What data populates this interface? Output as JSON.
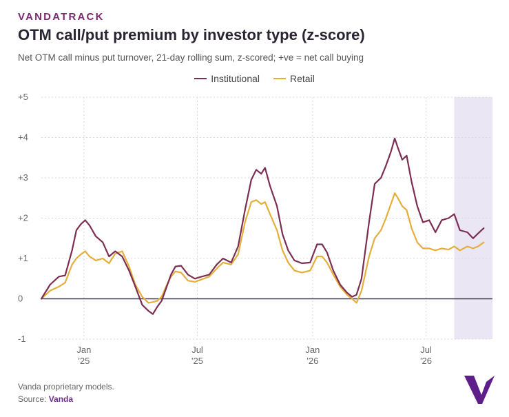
{
  "header": {
    "brand": "VANDATRACK",
    "title": "OTM call/put premium by investor type (z-score)",
    "subtitle": "Net OTM call minus put turnover, 21-day rolling sum, z-scored; +ve = net call buying"
  },
  "footer": {
    "note": "Vanda proprietary models.",
    "source_prefix": "Source: ",
    "source_name": "Vanda"
  },
  "logo": {
    "icon": "vanda-v-logo-icon",
    "color": "#5e1f8a"
  },
  "chart_data": {
    "type": "line",
    "title": "OTM call/put premium by investor type (z-score)",
    "ylim": [
      -1,
      5
    ],
    "yticks": [
      -1,
      0,
      1,
      2,
      3,
      4,
      5
    ],
    "ytick_labels": [
      "-1",
      "0",
      "+1",
      "+2",
      "+3",
      "+4",
      "+5"
    ],
    "xlim": [
      "2024-10-25",
      "2026-10-15"
    ],
    "xticks": [
      {
        "date": "2025-01-01",
        "label": "Jan",
        "year": "'25"
      },
      {
        "date": "2025-07-01",
        "label": "Jul",
        "year": "'25"
      },
      {
        "date": "2026-01-01",
        "label": "Jan",
        "year": "'26"
      },
      {
        "date": "2026-07-01",
        "label": "Jul",
        "year": "'26"
      }
    ],
    "grid": {
      "x": true,
      "y": true,
      "style": "dotted"
    },
    "legend_position": "top-center",
    "highlight_range": {
      "from": "2026-08-15",
      "to": "2026-10-15",
      "color": "#ebe6f3"
    },
    "series": [
      {
        "name": "Institutional",
        "color": "#7b2d52",
        "points": [
          [
            "2024-10-25",
            0.0
          ],
          [
            "2024-11-08",
            0.35
          ],
          [
            "2024-11-22",
            0.55
          ],
          [
            "2024-12-02",
            0.58
          ],
          [
            "2024-12-13",
            1.2
          ],
          [
            "2024-12-20",
            1.7
          ],
          [
            "2024-12-27",
            1.85
          ],
          [
            "2025-01-03",
            1.95
          ],
          [
            "2025-01-10",
            1.82
          ],
          [
            "2025-01-20",
            1.55
          ],
          [
            "2025-01-31",
            1.4
          ],
          [
            "2025-02-10",
            1.05
          ],
          [
            "2025-02-20",
            1.18
          ],
          [
            "2025-03-03",
            1.05
          ],
          [
            "2025-03-14",
            0.7
          ],
          [
            "2025-03-24",
            0.3
          ],
          [
            "2025-04-04",
            -0.15
          ],
          [
            "2025-04-14",
            -0.3
          ],
          [
            "2025-04-21",
            -0.38
          ],
          [
            "2025-04-28",
            -0.2
          ],
          [
            "2025-05-05",
            -0.05
          ],
          [
            "2025-05-12",
            0.25
          ],
          [
            "2025-05-20",
            0.6
          ],
          [
            "2025-05-27",
            0.8
          ],
          [
            "2025-06-05",
            0.82
          ],
          [
            "2025-06-16",
            0.6
          ],
          [
            "2025-06-27",
            0.5
          ],
          [
            "2025-07-08",
            0.55
          ],
          [
            "2025-07-20",
            0.6
          ],
          [
            "2025-08-01",
            0.85
          ],
          [
            "2025-08-11",
            1.0
          ],
          [
            "2025-08-24",
            0.9
          ],
          [
            "2025-09-04",
            1.3
          ],
          [
            "2025-09-15",
            2.2
          ],
          [
            "2025-09-25",
            2.95
          ],
          [
            "2025-10-03",
            3.2
          ],
          [
            "2025-10-11",
            3.1
          ],
          [
            "2025-10-17",
            3.25
          ],
          [
            "2025-10-25",
            2.8
          ],
          [
            "2025-11-05",
            2.3
          ],
          [
            "2025-11-14",
            1.6
          ],
          [
            "2025-11-23",
            1.2
          ],
          [
            "2025-12-03",
            0.95
          ],
          [
            "2025-12-15",
            0.88
          ],
          [
            "2025-12-28",
            0.9
          ],
          [
            "2026-01-08",
            1.35
          ],
          [
            "2026-01-16",
            1.35
          ],
          [
            "2026-01-24",
            1.15
          ],
          [
            "2026-02-03",
            0.7
          ],
          [
            "2026-02-14",
            0.35
          ],
          [
            "2026-02-25",
            0.15
          ],
          [
            "2026-03-05",
            0.05
          ],
          [
            "2026-03-12",
            0.1
          ],
          [
            "2026-03-20",
            0.5
          ],
          [
            "2026-04-01",
            1.9
          ],
          [
            "2026-04-10",
            2.85
          ],
          [
            "2026-04-20",
            3.0
          ],
          [
            "2026-04-28",
            3.3
          ],
          [
            "2026-05-06",
            3.65
          ],
          [
            "2026-05-12",
            3.98
          ],
          [
            "2026-05-17",
            3.75
          ],
          [
            "2026-05-24",
            3.45
          ],
          [
            "2026-05-31",
            3.55
          ],
          [
            "2026-06-08",
            2.9
          ],
          [
            "2026-06-17",
            2.3
          ],
          [
            "2026-06-26",
            1.9
          ],
          [
            "2026-07-06",
            1.95
          ],
          [
            "2026-07-16",
            1.65
          ],
          [
            "2026-07-26",
            1.95
          ],
          [
            "2026-08-06",
            2.0
          ],
          [
            "2026-08-15",
            2.1
          ],
          [
            "2026-08-24",
            1.7
          ],
          [
            "2026-09-05",
            1.65
          ],
          [
            "2026-09-14",
            1.5
          ],
          [
            "2026-09-22",
            1.62
          ],
          [
            "2026-10-01",
            1.75
          ]
        ]
      },
      {
        "name": "Retail",
        "color": "#e3ae3a",
        "points": [
          [
            "2024-10-25",
            0.0
          ],
          [
            "2024-11-08",
            0.2
          ],
          [
            "2024-11-22",
            0.3
          ],
          [
            "2024-12-02",
            0.4
          ],
          [
            "2024-12-13",
            0.85
          ],
          [
            "2024-12-20",
            1.0
          ],
          [
            "2024-12-27",
            1.1
          ],
          [
            "2025-01-03",
            1.18
          ],
          [
            "2025-01-10",
            1.05
          ],
          [
            "2025-01-20",
            0.95
          ],
          [
            "2025-01-31",
            1.0
          ],
          [
            "2025-02-10",
            0.88
          ],
          [
            "2025-02-20",
            1.12
          ],
          [
            "2025-03-03",
            1.18
          ],
          [
            "2025-03-14",
            0.8
          ],
          [
            "2025-03-24",
            0.35
          ],
          [
            "2025-04-04",
            0.05
          ],
          [
            "2025-04-14",
            -0.1
          ],
          [
            "2025-04-21",
            -0.08
          ],
          [
            "2025-04-28",
            -0.05
          ],
          [
            "2025-05-05",
            0.05
          ],
          [
            "2025-05-12",
            0.3
          ],
          [
            "2025-05-20",
            0.55
          ],
          [
            "2025-05-27",
            0.68
          ],
          [
            "2025-06-05",
            0.65
          ],
          [
            "2025-06-16",
            0.45
          ],
          [
            "2025-06-27",
            0.42
          ],
          [
            "2025-07-08",
            0.48
          ],
          [
            "2025-07-20",
            0.55
          ],
          [
            "2025-08-01",
            0.75
          ],
          [
            "2025-08-11",
            0.9
          ],
          [
            "2025-08-24",
            0.85
          ],
          [
            "2025-09-04",
            1.1
          ],
          [
            "2025-09-15",
            1.9
          ],
          [
            "2025-09-25",
            2.4
          ],
          [
            "2025-10-03",
            2.45
          ],
          [
            "2025-10-11",
            2.35
          ],
          [
            "2025-10-17",
            2.4
          ],
          [
            "2025-10-25",
            2.1
          ],
          [
            "2025-11-05",
            1.7
          ],
          [
            "2025-11-14",
            1.2
          ],
          [
            "2025-11-23",
            0.9
          ],
          [
            "2025-12-03",
            0.7
          ],
          [
            "2025-12-15",
            0.65
          ],
          [
            "2025-12-28",
            0.7
          ],
          [
            "2026-01-08",
            1.05
          ],
          [
            "2026-01-16",
            1.05
          ],
          [
            "2026-01-24",
            0.9
          ],
          [
            "2026-02-03",
            0.6
          ],
          [
            "2026-02-14",
            0.3
          ],
          [
            "2026-02-25",
            0.1
          ],
          [
            "2026-03-05",
            0.0
          ],
          [
            "2026-03-12",
            -0.1
          ],
          [
            "2026-03-20",
            0.2
          ],
          [
            "2026-04-01",
            1.05
          ],
          [
            "2026-04-10",
            1.5
          ],
          [
            "2026-04-20",
            1.7
          ],
          [
            "2026-04-28",
            2.0
          ],
          [
            "2026-05-06",
            2.35
          ],
          [
            "2026-05-12",
            2.62
          ],
          [
            "2026-05-17",
            2.5
          ],
          [
            "2026-05-24",
            2.3
          ],
          [
            "2026-05-31",
            2.2
          ],
          [
            "2026-06-08",
            1.75
          ],
          [
            "2026-06-17",
            1.4
          ],
          [
            "2026-06-26",
            1.25
          ],
          [
            "2026-07-06",
            1.25
          ],
          [
            "2026-07-16",
            1.2
          ],
          [
            "2026-07-26",
            1.25
          ],
          [
            "2026-08-06",
            1.22
          ],
          [
            "2026-08-15",
            1.3
          ],
          [
            "2026-08-24",
            1.2
          ],
          [
            "2026-09-05",
            1.3
          ],
          [
            "2026-09-14",
            1.25
          ],
          [
            "2026-09-22",
            1.3
          ],
          [
            "2026-10-01",
            1.4
          ]
        ]
      }
    ]
  }
}
